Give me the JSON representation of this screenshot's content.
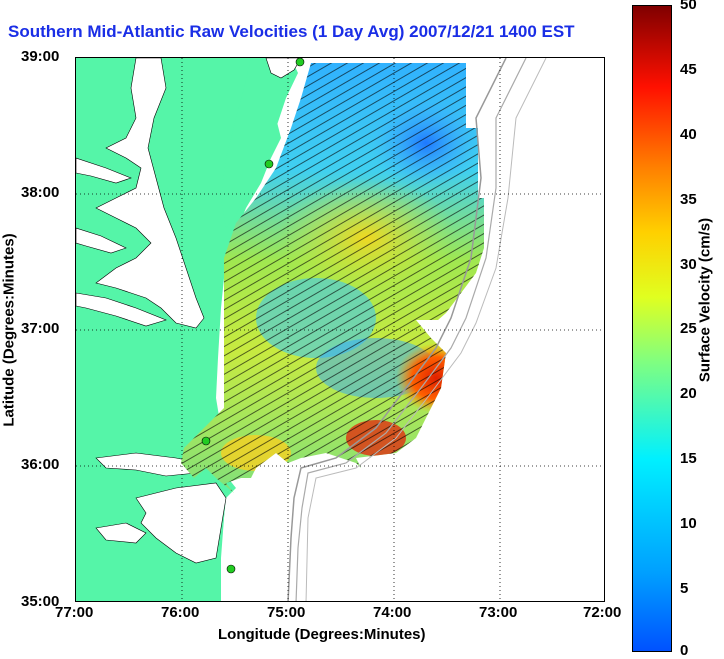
{
  "title": "Southern Mid-Atlantic Raw Velocities (1 Day Avg) 2007/12/21 1400 EST",
  "map": {
    "xlabel": "Longitude (Degrees:Minutes)",
    "ylabel": "Latitude (Degrees:Minutes)",
    "x_ticks": [
      "77:00",
      "76:00",
      "75:00",
      "74:00",
      "73:00",
      "72:00"
    ],
    "y_ticks": [
      "39:00",
      "38:00",
      "37:00",
      "36:00",
      "35:00"
    ],
    "lon_range": [
      -77,
      -72
    ],
    "lat_range": [
      35,
      39
    ],
    "grid": "dotted",
    "land_color": "#55f5a8",
    "station_color": "#22cc22",
    "isobath_color": "#999999"
  },
  "colorbar": {
    "label": "Surface Velocity (cm/s)",
    "ticks": [
      "50",
      "45",
      "40",
      "35",
      "30",
      "25",
      "20",
      "15",
      "10",
      "5",
      "0"
    ],
    "range": [
      0,
      50
    ],
    "colormap": "jet"
  }
}
